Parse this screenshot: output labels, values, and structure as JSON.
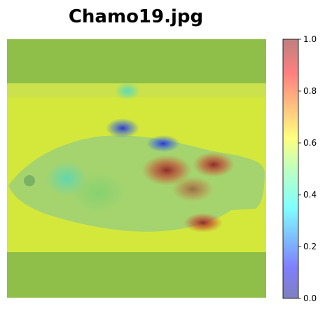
{
  "chart_data": {
    "type": "heatmap",
    "title": "Chamo19.jpg",
    "xlabel": "",
    "ylabel": "",
    "colormap": "jet",
    "overlay_alpha": 0.5,
    "colorbar": {
      "range": [
        0.0,
        1.0
      ],
      "ticks": [
        "0.0",
        "0.2",
        "0.4",
        "0.6",
        "0.8",
        "1.0"
      ]
    },
    "hotspots": [
      {
        "region": "upper mid body near dorsal fin",
        "value": 0.05
      },
      {
        "region": "dorsal fin center",
        "value": 0.1
      },
      {
        "region": "ruler top center",
        "value": 0.38
      },
      {
        "region": "rear body upper",
        "value": 0.95
      },
      {
        "region": "mid body",
        "value": 0.9
      },
      {
        "region": "caudal peduncle upper",
        "value": 0.92
      },
      {
        "region": "anal fin area",
        "value": 0.9
      },
      {
        "region": "head",
        "value": 0.45
      }
    ]
  }
}
